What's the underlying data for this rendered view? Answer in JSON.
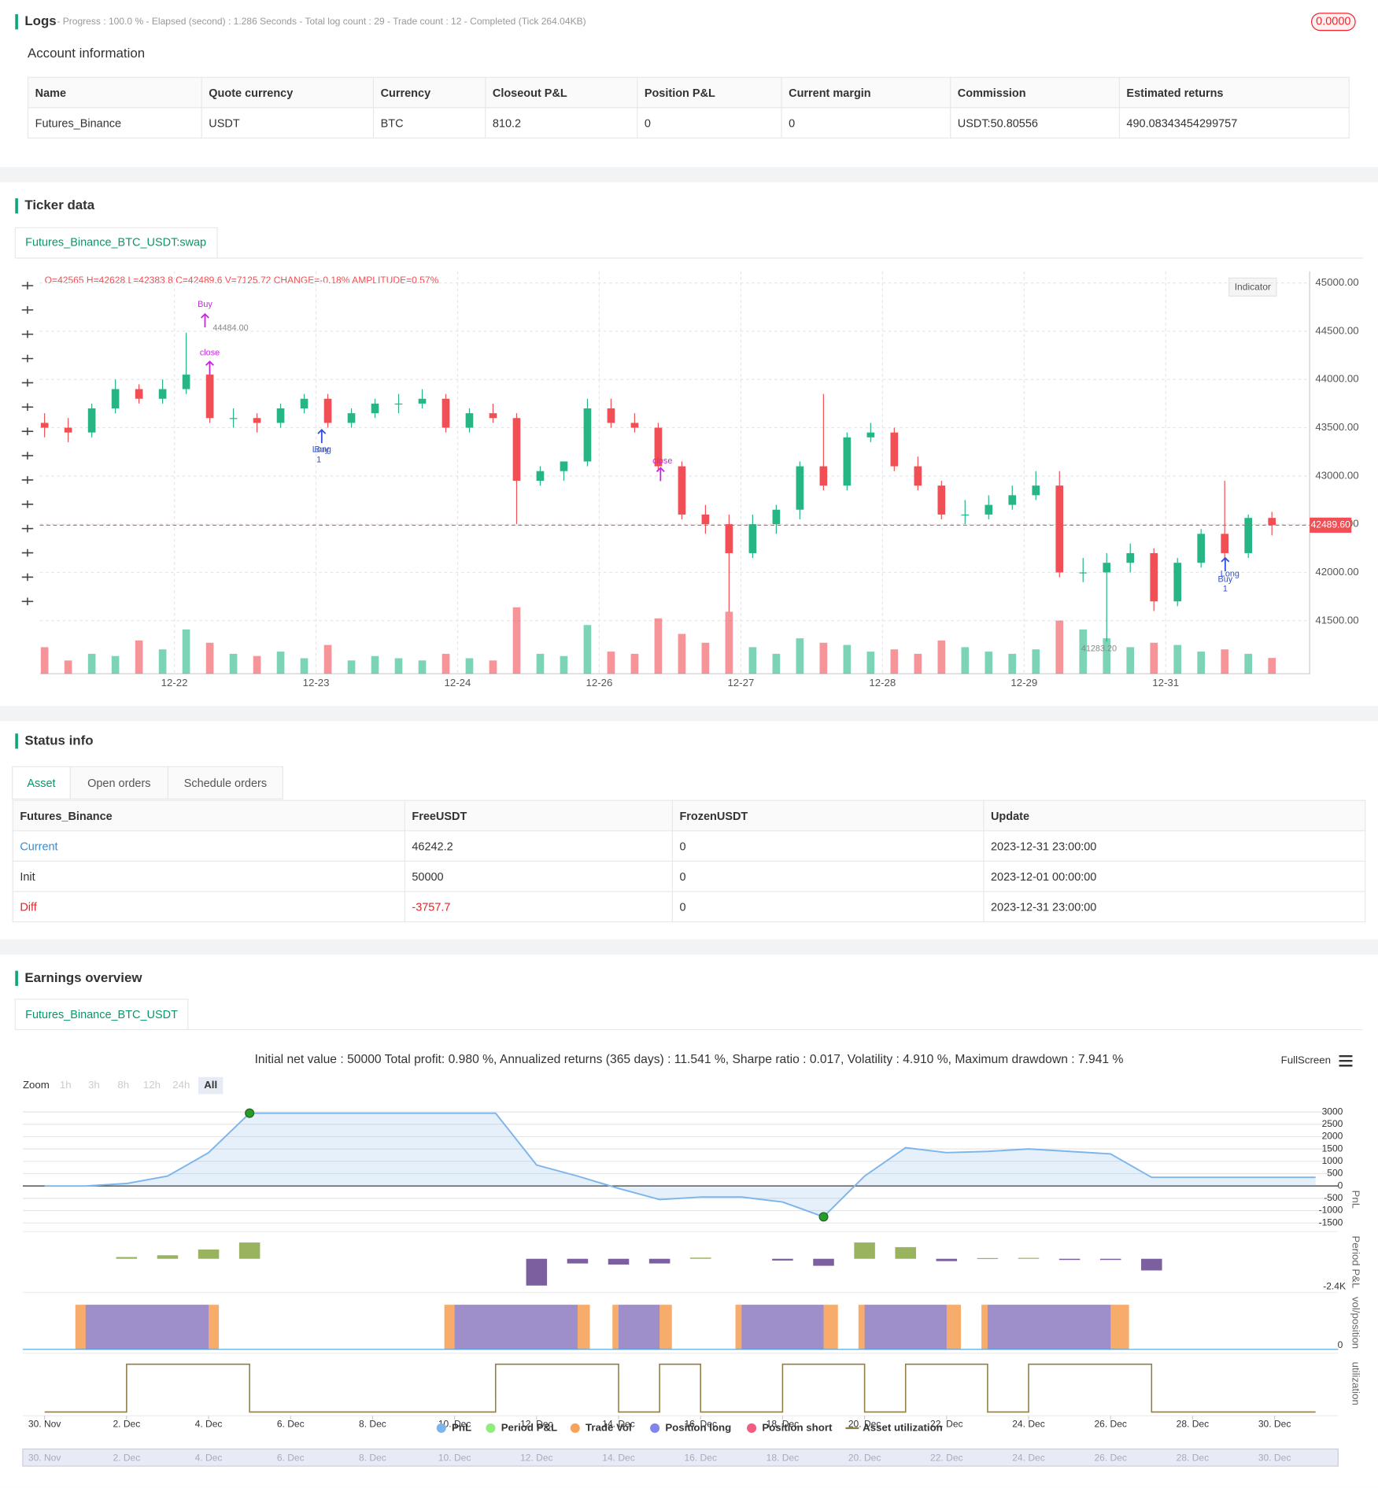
{
  "logs": {
    "title": "Logs",
    "status": "- Progress : 100.0 % - Elapsed (second) : 1.286 Seconds - Total log count : 29 - Trade count : 12 - Completed (Tick 264.04KB)",
    "badge": "0.0000"
  },
  "account": {
    "title": "Account information",
    "table": {
      "header": [
        "Name",
        "Quote currency",
        "Currency",
        "Closeout P&L",
        "Position P&L",
        "Current margin",
        "Commission",
        "Estimated returns"
      ],
      "rows": [
        [
          "Futures_Binance",
          "USDT",
          "BTC",
          "810.2",
          "0",
          "0",
          "USDT:50.80556",
          "490.08343454299757"
        ]
      ]
    }
  },
  "ticker": {
    "title": "Ticker data",
    "tab": "Futures_Binance_BTC_USDT:swap",
    "ohlc": "O=42565 H=42628 L=42383.8 C=42489.6 V=7125.72 CHANGE=-0.18% AMPLITUDE=0.57%",
    "indicator": "Indicator"
  },
  "status": {
    "title": "Status info",
    "tabs": [
      "Asset",
      "Open orders",
      "Schedule orders"
    ],
    "table": {
      "header": [
        "Futures_Binance",
        "FreeUSDT",
        "FrozenUSDT",
        "Update"
      ],
      "rows": [
        [
          "Current",
          "46242.2",
          "0",
          "2023-12-31 23:00:00"
        ],
        [
          "Init",
          "50000",
          "0",
          "2023-12-01 00:00:00"
        ],
        [
          "Diff",
          "-3757.7",
          "0",
          "2023-12-31 23:00:00"
        ]
      ]
    }
  },
  "earnings": {
    "title": "Earnings overview",
    "tab": "Futures_Binance_BTC_USDT",
    "summary": "Initial net value : 50000 Total profit: 0.980 %, Annualized returns (365 days) : 11.541 %, Sharpe ratio : 0.017, Volatility : 4.910 %, Maximum drawdown : 7.941 %",
    "zoom": {
      "label": "Zoom",
      "buttons": [
        "1h",
        "3h",
        "8h",
        "12h",
        "24h",
        "All"
      ]
    },
    "fullscreen": "FullScreen"
  },
  "chart_data": [
    {
      "type": "candlestick",
      "open": [
        43550,
        43500,
        43450,
        43700,
        43900,
        43800,
        43900,
        44050,
        43600,
        43600,
        43550,
        43700,
        43800,
        43550,
        43650,
        43750,
        43750,
        43800,
        43500,
        43650,
        43600,
        42950,
        43050,
        43150,
        43700,
        43550,
        43500,
        43100,
        42600,
        42500,
        42200,
        42500,
        42650,
        43100,
        42900,
        43400,
        43450,
        43100,
        42900,
        42600,
        42600,
        42700,
        42800,
        42900,
        42000,
        42000,
        42100,
        42200,
        41700,
        42100,
        42400,
        42200,
        42565
      ],
      "high": [
        43650,
        43600,
        43750,
        44000,
        43950,
        44000,
        44484,
        44100,
        43700,
        43650,
        43750,
        43850,
        43850,
        43700,
        43800,
        43850,
        43900,
        43850,
        43700,
        43750,
        43650,
        43100,
        43150,
        43800,
        43800,
        43650,
        43550,
        43150,
        42700,
        42600,
        42600,
        42700,
        43150,
        43850,
        43450,
        43550,
        43500,
        43200,
        42950,
        42750,
        42800,
        42900,
        43050,
        43050,
        42150,
        42200,
        42300,
        42250,
        42150,
        42450,
        42950,
        42600,
        42628
      ],
      "low": [
        43400,
        43350,
        43400,
        43650,
        43750,
        43750,
        43850,
        43550,
        43500,
        43450,
        43500,
        43650,
        43500,
        43500,
        43600,
        43650,
        43700,
        43450,
        43450,
        43550,
        42500,
        42900,
        42950,
        43100,
        43500,
        43450,
        43050,
        42550,
        42400,
        41590,
        42150,
        42400,
        42550,
        42850,
        42850,
        43350,
        43050,
        42850,
        42550,
        42500,
        42550,
        42650,
        42750,
        41950,
        41900,
        41283.2,
        42000,
        41600,
        41650,
        42050,
        42150,
        42150,
        42383.8
      ],
      "close": [
        43500,
        43450,
        43700,
        43900,
        43800,
        43900,
        44050,
        43600,
        43600,
        43550,
        43700,
        43800,
        43550,
        43650,
        43750,
        43750,
        43800,
        43500,
        43650,
        43600,
        42950,
        43050,
        43150,
        43700,
        43550,
        43500,
        43100,
        42600,
        42500,
        42200,
        42500,
        42650,
        43100,
        42900,
        43400,
        43450,
        43100,
        42900,
        42600,
        42600,
        42700,
        42800,
        42900,
        42000,
        42000,
        42100,
        42200,
        41700,
        42100,
        42400,
        42200,
        42565,
        42489.6
      ],
      "volume": [
        12000,
        6000,
        9000,
        8000,
        15000,
        11000,
        20000,
        14000,
        9000,
        8000,
        10000,
        7000,
        13000,
        6000,
        8000,
        7000,
        6000,
        9000,
        7000,
        6000,
        30000,
        9000,
        8000,
        22000,
        10000,
        9000,
        25000,
        18000,
        14000,
        28000,
        12000,
        9000,
        16000,
        14000,
        13000,
        10000,
        11000,
        9000,
        15000,
        12000,
        10000,
        9000,
        11000,
        24000,
        20000,
        16000,
        12000,
        14000,
        13000,
        10000,
        11000,
        9000,
        7125.72
      ],
      "up_color": "#26b583",
      "down_color": "#ef4f55",
      "xlim": [
        -0.2,
        53.6
      ],
      "xticks": [
        {
          "value": 5.5,
          "label": "12-22"
        },
        {
          "value": 11.5,
          "label": "12-23"
        },
        {
          "value": 17.5,
          "label": "12-24"
        },
        {
          "value": 23.5,
          "label": "12-26"
        },
        {
          "value": 29.5,
          "label": "12-27"
        },
        {
          "value": 35.5,
          "label": "12-28"
        },
        {
          "value": 41.5,
          "label": "12-29"
        },
        {
          "value": 47.5,
          "label": "12-31"
        }
      ],
      "ylim": [
        40950,
        45120
      ],
      "yticks": [
        {
          "value": 45000,
          "label": "45000.00"
        },
        {
          "value": 44500,
          "label": "44500.00"
        },
        {
          "value": 44000,
          "label": "44000.00"
        },
        {
          "value": 43500,
          "label": "43500.00"
        },
        {
          "value": 43000,
          "label": "43000.00"
        },
        {
          "value": 42500,
          "label": "42500.00"
        },
        {
          "value": 42000,
          "label": "42000.00"
        },
        {
          "value": 41500,
          "label": "41500.00"
        }
      ],
      "grid": true,
      "last_price": {
        "value": 42489.6,
        "label": "42489.60"
      },
      "annotations": [
        "Buy",
        "44484.00",
        "close",
        "Buy",
        "Long",
        "1",
        "close",
        "Long",
        "Buy",
        "1",
        "41283.20"
      ]
    },
    {
      "type": "line",
      "xlim": [
        -0.532,
        31.55
      ],
      "xticks": [
        {
          "value": 0,
          "label": "30. Nov"
        },
        {
          "value": 2,
          "label": "2. Dec"
        },
        {
          "value": 4,
          "label": "4. Dec"
        },
        {
          "value": 6,
          "label": "6. Dec"
        },
        {
          "value": 8,
          "label": "8. Dec"
        },
        {
          "value": 10,
          "label": "10. Dec"
        },
        {
          "value": 12,
          "label": "12. Dec"
        },
        {
          "value": 14,
          "label": "14. Dec"
        },
        {
          "value": 16,
          "label": "16. Dec"
        },
        {
          "value": 18,
          "label": "18. Dec"
        },
        {
          "value": 20,
          "label": "20. Dec"
        },
        {
          "value": 22,
          "label": "22. Dec"
        },
        {
          "value": 24,
          "label": "24. Dec"
        },
        {
          "value": 26,
          "label": "26. Dec"
        },
        {
          "value": 28,
          "label": "28. Dec"
        },
        {
          "value": 30,
          "label": "30. Dec"
        }
      ],
      "ylim": [
        -1700,
        3300
      ],
      "yticks": [
        3000,
        2500,
        2000,
        1500,
        1000,
        500,
        0,
        -500,
        -1000,
        -1500
      ],
      "period_ylim": [
        -2400,
        2000
      ],
      "period_yticks": [
        {
          "value": -2400,
          "label": "-2.4K"
        }
      ],
      "vol_yticks": [
        0
      ],
      "util_ylim": [
        0,
        1
      ],
      "axis_titles": [
        "PnL",
        "Period P&L",
        "vol/position",
        "utilization"
      ],
      "series": [
        {
          "name": "PnL",
          "color": "#7cb5ec",
          "x": [
            0,
            1,
            2,
            3,
            4,
            5,
            11,
            12,
            13,
            14,
            15,
            16,
            17,
            18,
            19,
            20,
            21,
            22,
            23,
            24,
            25,
            26,
            27,
            31
          ],
          "values": [
            0,
            0,
            100,
            400,
            1350,
            2950,
            2950,
            850,
            400,
            -100,
            -550,
            -450,
            -450,
            -650,
            -1250,
            400,
            1550,
            1350,
            1400,
            1500,
            1400,
            1300,
            350,
            350
          ]
        },
        {
          "name": "Period P&L",
          "color": "#90ed7d",
          "positive_color": "#9ab35e",
          "negative_color": "#7b5f9e",
          "x": [
            2,
            3,
            4,
            5,
            12,
            13,
            14,
            15,
            16,
            18,
            19,
            20,
            21,
            22,
            23,
            24,
            25,
            26,
            27
          ],
          "values": [
            150,
            300,
            800,
            1400,
            -2300,
            -400,
            -500,
            -400,
            100,
            -150,
            -600,
            1400,
            1000,
            -200,
            60,
            80,
            -100,
            -100,
            -1000
          ]
        },
        {
          "name": "Trade Vol",
          "color": "#f7a35c",
          "ranges": [
            [
              0.75,
              4.25
            ],
            [
              9.75,
              13.3
            ],
            [
              13.85,
              15.3
            ],
            [
              16.85,
              19.35
            ],
            [
              19.85,
              22.35
            ],
            [
              22.85,
              26.45
            ]
          ]
        },
        {
          "name": "Position long",
          "color": "#8085e9",
          "ranges": [
            [
              1,
              4
            ],
            [
              10,
              13
            ],
            [
              14,
              15
            ],
            [
              17,
              19
            ],
            [
              20,
              22
            ],
            [
              23,
              26
            ]
          ]
        },
        {
          "name": "Position short",
          "color": "#f15c80",
          "ranges": []
        },
        {
          "name": "Asset utilization",
          "color": "#8f7e45",
          "x": [
            0,
            2,
            2,
            5,
            5,
            11,
            11,
            14,
            14,
            15,
            15,
            16,
            16,
            18,
            18,
            20,
            20,
            21,
            21,
            23,
            23,
            24,
            24,
            27,
            27,
            31
          ],
          "values": [
            0,
            0,
            0.95,
            0.95,
            0,
            0,
            0.95,
            0.95,
            0,
            0,
            0.95,
            0.95,
            0,
            0,
            0.95,
            0.95,
            0,
            0,
            0.95,
            0.95,
            0,
            0,
            0.95,
            0.95,
            0,
            0
          ]
        }
      ]
    }
  ]
}
